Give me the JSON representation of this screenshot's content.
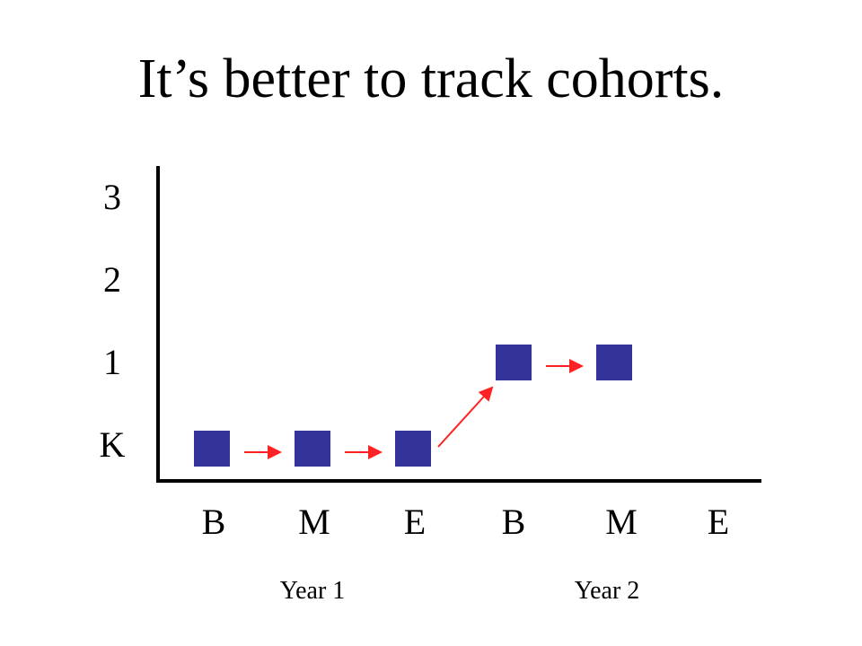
{
  "title": "It’s better to track cohorts.",
  "y_labels": [
    "3",
    "2",
    "1",
    "K"
  ],
  "x_labels": [
    "B",
    "M",
    "E",
    "B",
    "M",
    "E"
  ],
  "year_labels": [
    "Year 1",
    "Year 2"
  ],
  "colors": {
    "square": "#333399",
    "arrow": "#ff2222",
    "axis": "#000000"
  },
  "chart_data": {
    "type": "scatter",
    "categories": [
      "B",
      "M",
      "E",
      "B",
      "M",
      "E"
    ],
    "groups": [
      "Year 1",
      "Year 2"
    ],
    "y_levels": [
      "K",
      "1",
      "2",
      "3"
    ],
    "series": [
      {
        "points": [
          {
            "x": "Year 1 B",
            "y": "K"
          },
          {
            "x": "Year 1 M",
            "y": "K"
          },
          {
            "x": "Year 1 E",
            "y": "K"
          },
          {
            "x": "Year 2 B",
            "y": "1"
          },
          {
            "x": "Year 2 M",
            "y": "1"
          }
        ]
      }
    ],
    "arrows": [
      {
        "from": "Year 1 B",
        "to": "Year 1 M"
      },
      {
        "from": "Year 1 M",
        "to": "Year 1 E"
      },
      {
        "from": "Year 1 E",
        "to": "Year 2 B"
      },
      {
        "from": "Year 2 B",
        "to": "Year 2 M"
      }
    ]
  }
}
